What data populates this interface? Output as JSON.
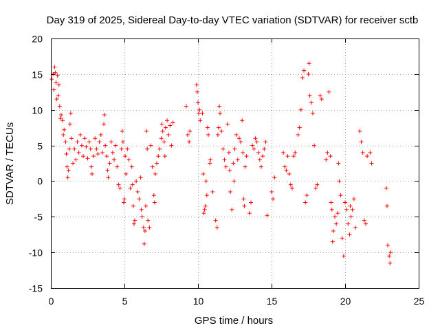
{
  "chart_data": {
    "type": "scatter",
    "title": "Day 319 of 2025, Sidereal Day-to-day VTEC variation (SDTVAR) for receiver sctb",
    "xlabel": "GPS time / hours",
    "ylabel": "SDTVAR / TECUs",
    "xlim": [
      0,
      25
    ],
    "ylim": [
      -15,
      20
    ],
    "xticks": [
      0,
      5,
      10,
      15,
      20,
      25
    ],
    "yticks": [
      -15,
      -10,
      -5,
      0,
      5,
      10,
      15,
      20
    ],
    "grid": true,
    "marker": "plus",
    "color": "#ff0000",
    "series": [
      {
        "name": "SDTVAR",
        "points": [
          [
            0.05,
            14.3
          ],
          [
            0.15,
            15.0
          ],
          [
            0.2,
            12.8
          ],
          [
            0.25,
            16.0
          ],
          [
            0.3,
            15.2
          ],
          [
            0.35,
            13.8
          ],
          [
            0.4,
            11.5
          ],
          [
            0.45,
            14.8
          ],
          [
            0.5,
            12.0
          ],
          [
            0.55,
            13.5
          ],
          [
            0.6,
            10.5
          ],
          [
            0.65,
            8.8
          ],
          [
            0.7,
            9.3
          ],
          [
            0.8,
            8.5
          ],
          [
            0.85,
            6.5
          ],
          [
            0.9,
            7.2
          ],
          [
            1.0,
            5.5
          ],
          [
            1.05,
            3.8
          ],
          [
            1.1,
            2.0
          ],
          [
            1.15,
            0.5
          ],
          [
            1.2,
            1.5
          ],
          [
            1.25,
            4.5
          ],
          [
            1.3,
            8.0
          ],
          [
            1.35,
            9.5
          ],
          [
            1.4,
            6.0
          ],
          [
            1.5,
            2.5
          ],
          [
            1.6,
            4.5
          ],
          [
            1.7,
            3.0
          ],
          [
            1.8,
            5.5
          ],
          [
            1.9,
            4.0
          ],
          [
            2.0,
            6.5
          ],
          [
            2.1,
            5.0
          ],
          [
            2.2,
            3.5
          ],
          [
            2.3,
            6.0
          ],
          [
            2.4,
            4.8
          ],
          [
            2.5,
            3.2
          ],
          [
            2.6,
            5.5
          ],
          [
            2.7,
            4.5
          ],
          [
            2.75,
            2.0
          ],
          [
            2.8,
            1.0
          ],
          [
            2.9,
            3.5
          ],
          [
            3.0,
            6.0
          ],
          [
            3.1,
            4.5
          ],
          [
            3.2,
            3.8
          ],
          [
            3.3,
            5.5
          ],
          [
            3.4,
            6.5
          ],
          [
            3.5,
            4.0
          ],
          [
            3.6,
            8.0
          ],
          [
            3.65,
            9.3
          ],
          [
            3.7,
            5.0
          ],
          [
            3.8,
            3.5
          ],
          [
            3.85,
            1.5
          ],
          [
            3.9,
            0.5
          ],
          [
            4.0,
            2.5
          ],
          [
            4.1,
            5.5
          ],
          [
            4.2,
            4.0
          ],
          [
            4.3,
            3.0
          ],
          [
            4.4,
            5.0
          ],
          [
            4.5,
            2.0
          ],
          [
            4.6,
            -0.5
          ],
          [
            4.7,
            -1.0
          ],
          [
            4.8,
            4.5
          ],
          [
            4.85,
            7.0
          ],
          [
            4.9,
            5.5
          ],
          [
            4.95,
            -3.0
          ],
          [
            5.0,
            -2.5
          ],
          [
            5.05,
            3.5
          ],
          [
            5.1,
            1.0
          ],
          [
            5.2,
            4.5
          ],
          [
            5.3,
            3.0
          ],
          [
            5.4,
            -1.0
          ],
          [
            5.5,
            2.0
          ],
          [
            5.55,
            -0.5
          ],
          [
            5.6,
            -3.5
          ],
          [
            5.65,
            -6.0
          ],
          [
            5.7,
            -5.5
          ],
          [
            5.8,
            0.0
          ],
          [
            5.9,
            -1.5
          ],
          [
            6.0,
            -2.5
          ],
          [
            6.1,
            0.5
          ],
          [
            6.15,
            -4.0
          ],
          [
            6.2,
            -5.0
          ],
          [
            6.3,
            -6.5
          ],
          [
            6.35,
            -8.8
          ],
          [
            6.4,
            -7.0
          ],
          [
            6.45,
            -3.5
          ],
          [
            6.5,
            7.0
          ],
          [
            6.55,
            4.5
          ],
          [
            6.6,
            -5.5
          ],
          [
            6.7,
            -6.5
          ],
          [
            6.8,
            5.0
          ],
          [
            6.9,
            2.0
          ],
          [
            7.0,
            -2.0
          ],
          [
            7.05,
            -3.0
          ],
          [
            7.1,
            1.0
          ],
          [
            7.2,
            2.5
          ],
          [
            7.3,
            3.5
          ],
          [
            7.4,
            4.5
          ],
          [
            7.5,
            6.0
          ],
          [
            7.55,
            8.0
          ],
          [
            7.6,
            7.0
          ],
          [
            7.7,
            5.5
          ],
          [
            7.75,
            3.5
          ],
          [
            7.8,
            7.5
          ],
          [
            7.9,
            8.5
          ],
          [
            8.0,
            6.5
          ],
          [
            8.1,
            7.8
          ],
          [
            8.2,
            5.0
          ],
          [
            8.3,
            8.2
          ],
          [
            9.2,
            10.5
          ],
          [
            9.3,
            6.5
          ],
          [
            9.4,
            5.5
          ],
          [
            9.45,
            7.0
          ],
          [
            9.9,
            13.5
          ],
          [
            9.95,
            12.5
          ],
          [
            10.0,
            11.0
          ],
          [
            10.05,
            9.5
          ],
          [
            10.1,
            10.0
          ],
          [
            10.15,
            8.5
          ],
          [
            10.3,
            9.5
          ],
          [
            10.35,
            1.0
          ],
          [
            10.4,
            -4.5
          ],
          [
            10.45,
            -4.0
          ],
          [
            10.5,
            -3.5
          ],
          [
            10.55,
            0.0
          ],
          [
            10.6,
            -2.0
          ],
          [
            10.65,
            7.5
          ],
          [
            10.7,
            6.5
          ],
          [
            10.8,
            2.5
          ],
          [
            10.85,
            3.0
          ],
          [
            11.0,
            -1.5
          ],
          [
            11.2,
            -5.5
          ],
          [
            11.3,
            -6.5
          ],
          [
            11.35,
            6.5
          ],
          [
            11.4,
            7.5
          ],
          [
            11.45,
            10.5
          ],
          [
            11.5,
            9.5
          ],
          [
            11.6,
            7.0
          ],
          [
            11.7,
            4.5
          ],
          [
            11.8,
            3.0
          ],
          [
            11.9,
            2.0
          ],
          [
            12.0,
            8.0
          ],
          [
            12.1,
            4.0
          ],
          [
            12.15,
            1.5
          ],
          [
            12.2,
            -1.5
          ],
          [
            12.3,
            -4.0
          ],
          [
            12.4,
            2.5
          ],
          [
            12.45,
            0.0
          ],
          [
            12.5,
            4.5
          ],
          [
            12.6,
            6.5
          ],
          [
            12.7,
            3.0
          ],
          [
            12.8,
            6.0
          ],
          [
            12.9,
            5.5
          ],
          [
            13.0,
            8.5
          ],
          [
            13.05,
            4.0
          ],
          [
            13.1,
            -2.5
          ],
          [
            13.15,
            -3.5
          ],
          [
            13.2,
            2.0
          ],
          [
            13.3,
            3.5
          ],
          [
            13.5,
            -4.5
          ],
          [
            13.6,
            -3.0
          ],
          [
            13.7,
            5.0
          ],
          [
            13.8,
            4.5
          ],
          [
            13.9,
            6.0
          ],
          [
            14.0,
            5.5
          ],
          [
            14.1,
            4.0
          ],
          [
            14.2,
            3.0
          ],
          [
            14.3,
            2.0
          ],
          [
            14.4,
            3.5
          ],
          [
            14.5,
            4.5
          ],
          [
            14.6,
            5.5
          ],
          [
            14.7,
            -4.8
          ],
          [
            15.0,
            -1.5
          ],
          [
            15.1,
            -2.5
          ],
          [
            15.2,
            0.5
          ],
          [
            15.8,
            4.0
          ],
          [
            15.9,
            2.0
          ],
          [
            16.0,
            1.5
          ],
          [
            16.1,
            3.5
          ],
          [
            16.2,
            1.0
          ],
          [
            16.3,
            -0.5
          ],
          [
            16.4,
            -1.0
          ],
          [
            16.5,
            3.5
          ],
          [
            16.6,
            4.0
          ],
          [
            16.8,
            6.5
          ],
          [
            16.9,
            7.5
          ],
          [
            17.0,
            10.0
          ],
          [
            17.1,
            14.5
          ],
          [
            17.2,
            15.5
          ],
          [
            17.3,
            -3.0
          ],
          [
            17.4,
            -2.0
          ],
          [
            17.5,
            15.0
          ],
          [
            17.55,
            16.5
          ],
          [
            17.6,
            12.0
          ],
          [
            17.7,
            11.0
          ],
          [
            17.8,
            9.5
          ],
          [
            17.9,
            5.0
          ],
          [
            18.0,
            -1.0
          ],
          [
            18.1,
            -0.5
          ],
          [
            18.3,
            12.0
          ],
          [
            18.4,
            11.5
          ],
          [
            18.7,
            3.0
          ],
          [
            18.8,
            4.0
          ],
          [
            18.9,
            12.5
          ],
          [
            19.0,
            3.5
          ],
          [
            19.05,
            -3.0
          ],
          [
            19.1,
            -4.0
          ],
          [
            19.15,
            -8.5
          ],
          [
            19.2,
            -7.0
          ],
          [
            19.3,
            -5.0
          ],
          [
            19.4,
            -6.0
          ],
          [
            19.5,
            -4.5
          ],
          [
            19.55,
            2.5
          ],
          [
            19.6,
            0.0
          ],
          [
            19.7,
            -2.0
          ],
          [
            19.8,
            -8.0
          ],
          [
            19.9,
            -10.5
          ],
          [
            20.0,
            -3.0
          ],
          [
            20.1,
            -4.0
          ],
          [
            20.2,
            -6.0
          ],
          [
            20.3,
            -7.5
          ],
          [
            20.35,
            -3.5
          ],
          [
            20.4,
            -5.0
          ],
          [
            20.5,
            -4.0
          ],
          [
            20.6,
            -2.5
          ],
          [
            20.7,
            -6.5
          ],
          [
            21.0,
            7.0
          ],
          [
            21.1,
            5.5
          ],
          [
            21.2,
            4.0
          ],
          [
            21.3,
            -5.5
          ],
          [
            21.4,
            -6.0
          ],
          [
            21.5,
            3.5
          ],
          [
            21.7,
            4.0
          ],
          [
            21.8,
            2.5
          ],
          [
            22.8,
            -1.0
          ],
          [
            22.85,
            -3.5
          ],
          [
            22.9,
            -9.0
          ],
          [
            23.0,
            -10.5
          ],
          [
            23.05,
            -11.5
          ],
          [
            23.1,
            -10.0
          ]
        ]
      }
    ]
  }
}
